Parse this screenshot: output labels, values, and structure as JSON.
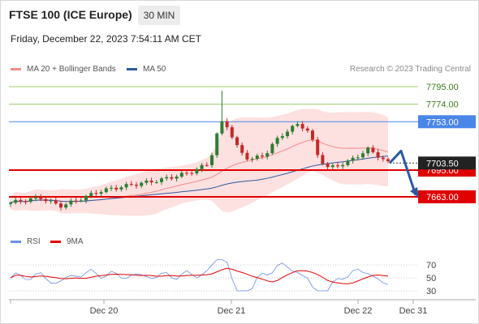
{
  "header": {
    "title": "FTSE 100 (ICE Europe)",
    "timeframe": "30 MIN",
    "datetime": "Friday, December 22, 2023 7:54:11 AM CET"
  },
  "legend": {
    "bb_label": "MA 20 + Bollinger Bands",
    "ma50_label": "MA 50",
    "rsi_label": "RSI",
    "ma9_label": "9MA",
    "credit": "Research © 2023 Trading Central"
  },
  "colors": {
    "bb": "#f48a8a",
    "bb_fill": "#fde0e0",
    "ma50": "#2d5a9e",
    "up": "#2e7d32",
    "down": "#c62828",
    "resistance": "#9ccc65",
    "pivot": "#4a86e8",
    "support": "#e00000",
    "rsi": "#6a8fe0",
    "ma9": "#e00000"
  },
  "chart_data": [
    {
      "type": "candlestick",
      "x_ticks": [
        "Dec 20",
        "Dec 21",
        "Dec 22",
        "Dec 31"
      ],
      "ylim": [
        7645,
        7800
      ],
      "current_price": "7703.50",
      "levels": [
        {
          "value": 7795.0,
          "label": "7795.00",
          "kind": "resistance"
        },
        {
          "value": 7774.0,
          "label": "7774.00",
          "kind": "resistance"
        },
        {
          "value": 7753.0,
          "label": "7753.00",
          "kind": "pivot"
        },
        {
          "value": 7695.0,
          "label": "7695.00",
          "kind": "support"
        },
        {
          "value": 7663.0,
          "label": "7663.00",
          "kind": "support"
        }
      ],
      "forecast": {
        "from": 7703.5,
        "peak": 7718,
        "to": 7663
      }
    },
    {
      "type": "line",
      "name": "RSI",
      "ylim": [
        20,
        80
      ],
      "y_ticks": [
        70,
        50,
        30
      ]
    }
  ]
}
